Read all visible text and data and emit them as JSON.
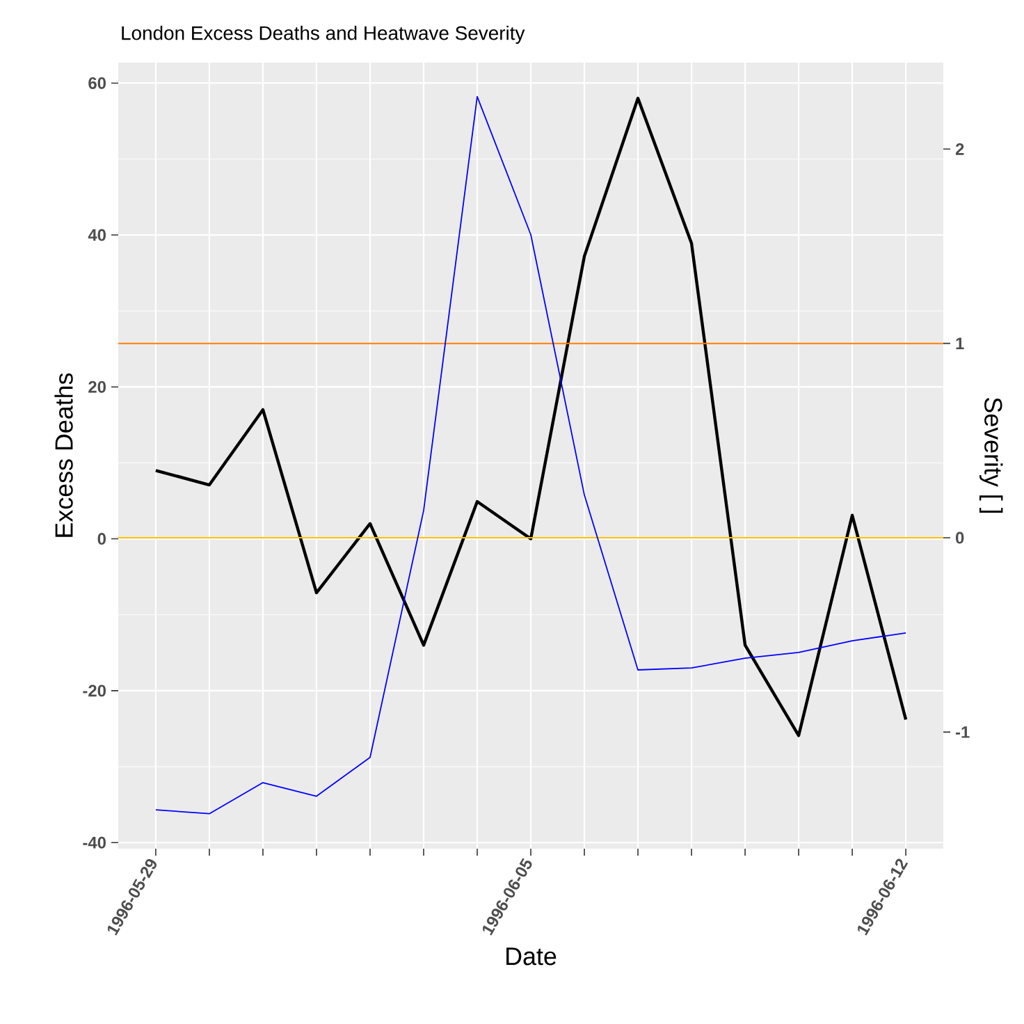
{
  "chart_data": {
    "type": "line",
    "title": "London Excess Deaths and Heatwave Severity",
    "xlabel": "Date",
    "ylabel": "Excess Deaths",
    "y2label": "Severity [ ]",
    "categories": [
      "1996-05-29",
      null,
      null,
      null,
      null,
      null,
      null,
      "1996-06-05",
      null,
      null,
      null,
      null,
      null,
      null,
      "1996-06-12"
    ],
    "series": [
      {
        "color": "#000000",
        "values": [
          9,
          7.1,
          17,
          -7.1,
          2,
          -14,
          4.9,
          0,
          37.2,
          58,
          38.9,
          -14,
          -25.9,
          3.1,
          -23.8
        ]
      },
      {
        "color": "#0000ff",
        "axis": "y2",
        "values": [
          -1.4,
          -1.42,
          -1.26,
          -1.33,
          -1.13,
          0.14,
          2.27,
          1.56,
          0.22,
          -0.68,
          -0.67,
          -0.62,
          -0.59,
          -0.53,
          -0.49
        ]
      }
    ],
    "ylim": [
      -40.8,
      62.7
    ],
    "yticks": [
      -40,
      -20,
      0,
      20,
      40,
      60
    ],
    "y2lim": [
      -1.6,
      2.445
    ],
    "y2ticks": [
      -1,
      0,
      1,
      2
    ],
    "ref_lines": [
      {
        "axis": "y2",
        "value": 1,
        "color": "#ff7f00"
      },
      {
        "axis": "y2",
        "value": 0,
        "color": "#ffbf00"
      }
    ],
    "grid": true,
    "marker": "none",
    "line_style": "solid"
  }
}
